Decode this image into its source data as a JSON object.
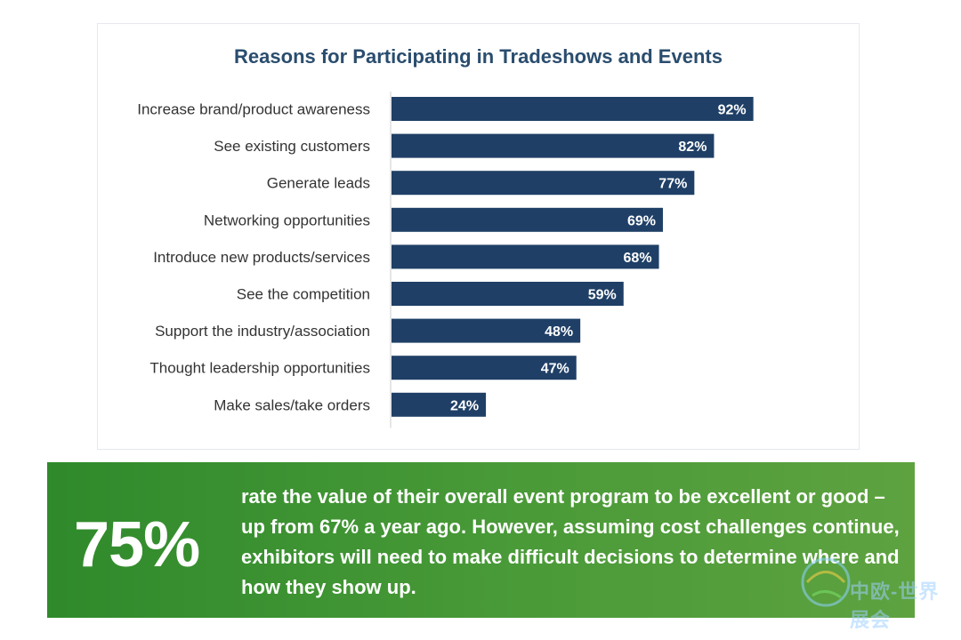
{
  "chart_data": {
    "type": "bar",
    "orientation": "horizontal",
    "title": "Reasons for Participating in Tradeshows and Events",
    "categories": [
      "Increase brand/product awareness",
      "See existing customers",
      "Generate leads",
      "Networking opportunities",
      "Introduce new products/services",
      "See the competition",
      "Support the industry/association",
      "Thought leadership opportunities",
      "Make sales/take orders"
    ],
    "values": [
      92,
      82,
      77,
      69,
      68,
      59,
      48,
      47,
      24
    ],
    "data_labels": [
      "92%",
      "82%",
      "77%",
      "69%",
      "68%",
      "59%",
      "48%",
      "47%",
      "24%"
    ],
    "xlim": [
      0,
      100
    ],
    "xlabel": "",
    "ylabel": "",
    "grid": false,
    "bar_color": "#1f3f66"
  },
  "callout": {
    "stat": "75%",
    "text": "rate the value of their overall event program to be excellent or good – up from 67% a year ago. However, assuming cost challenges continue, exhibitors will need to make difficult decisions to determine where and how they show up."
  },
  "watermark": {
    "text": "中欧-世界展会"
  },
  "colors": {
    "title": "#2a4d6e",
    "bar": "#1f3f66",
    "callout_bg": "#4a9a38"
  }
}
